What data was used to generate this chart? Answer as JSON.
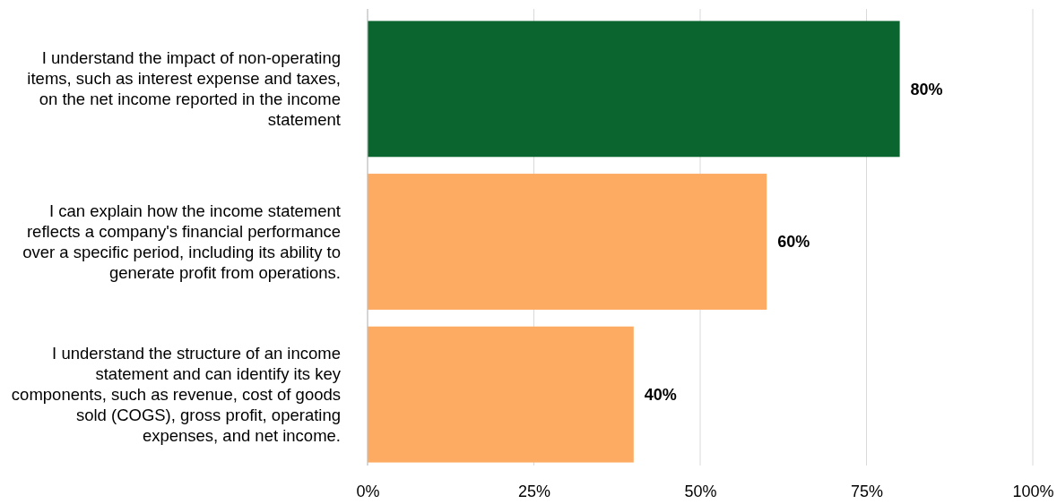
{
  "chart_data": {
    "type": "bar",
    "orientation": "horizontal",
    "categories": [
      "I understand the impact of non-operating items, such as interest expense and taxes, on the net income reported in the income statement",
      "I can explain how the income statement reflects a company's financial performance over a specific period, including its ability to generate profit from operations.",
      "I understand the structure of an income statement and can identify its key components, such as revenue, cost of goods sold (COGS), gross profit, operating expenses, and net income."
    ],
    "values": [
      80,
      60,
      40
    ],
    "colors": [
      "#0b652e",
      "#fdab62",
      "#fdab62"
    ],
    "value_labels": [
      "80%",
      "60%",
      "40%"
    ],
    "xlim": [
      0,
      100
    ],
    "xticks": [
      {
        "value": 0,
        "label": "0%"
      },
      {
        "value": 25,
        "label": "25%"
      },
      {
        "value": 50,
        "label": "50%"
      },
      {
        "value": 75,
        "label": "75%"
      },
      {
        "value": 100,
        "label": "100%"
      }
    ],
    "grid": "x"
  }
}
